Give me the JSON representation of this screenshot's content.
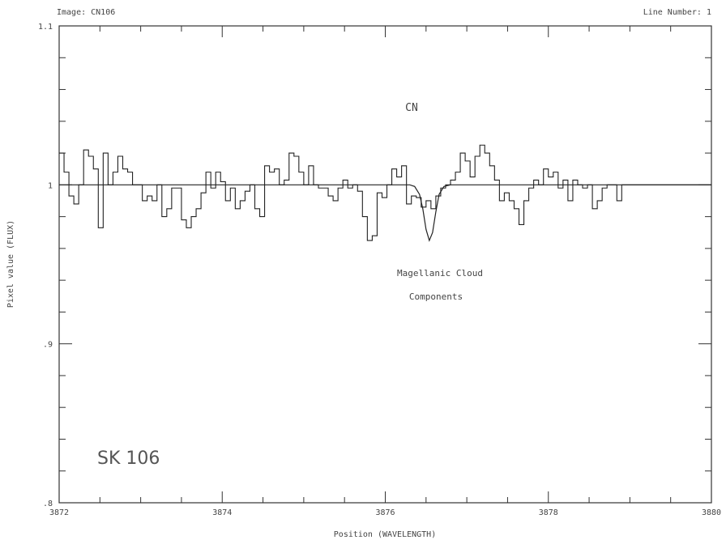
{
  "header": {
    "image_label": "Image: CN106",
    "line_number_label": "Line Number: 1"
  },
  "annotations": {
    "molecule": "CN",
    "component_line1": "Magellanic Cloud",
    "component_line2": "Components",
    "star_name": "SK 106"
  },
  "chart_data": {
    "type": "line",
    "title": "",
    "xlabel": "Position (WAVELENGTH)",
    "ylabel": "Pixel value (FLUX)",
    "xlim": [
      3872,
      3880
    ],
    "ylim": [
      0.8,
      1.1
    ],
    "grid": false,
    "x_ticks": [
      3872,
      3874,
      3876,
      3878,
      3880
    ],
    "x_tick_labels": [
      "3872",
      "3874",
      "3876",
      "3878",
      "3880"
    ],
    "y_ticks": [
      0.8,
      0.9,
      1.0,
      1.1
    ],
    "y_tick_labels": [
      ".8",
      ".9",
      "1",
      "1.1"
    ],
    "series": [
      {
        "style": "step",
        "x": [
          3872.0,
          3872.06,
          3872.12,
          3872.18,
          3872.24,
          3872.3,
          3872.36,
          3872.42,
          3872.48,
          3872.54,
          3872.6,
          3872.66,
          3872.72,
          3872.78,
          3872.84,
          3872.9,
          3872.96,
          3873.02,
          3873.08,
          3873.14,
          3873.2,
          3873.26,
          3873.32,
          3873.38,
          3873.44,
          3873.5,
          3873.56,
          3873.62,
          3873.68,
          3873.74,
          3873.8,
          3873.86,
          3873.92,
          3873.98,
          3874.04,
          3874.1,
          3874.16,
          3874.22,
          3874.28,
          3874.34,
          3874.4,
          3874.46,
          3874.52,
          3874.58,
          3874.64,
          3874.7,
          3874.76,
          3874.82,
          3874.88,
          3874.94,
          3875.0,
          3875.06,
          3875.12,
          3875.18,
          3875.24,
          3875.3,
          3875.36,
          3875.42,
          3875.48,
          3875.54,
          3875.6,
          3875.66,
          3875.72,
          3875.78,
          3875.84,
          3875.9,
          3875.96,
          3876.02,
          3876.08,
          3876.14,
          3876.2,
          3876.26,
          3876.32,
          3876.38,
          3876.44,
          3876.5,
          3876.56,
          3876.62,
          3876.68,
          3876.74,
          3876.8,
          3876.86,
          3876.92,
          3876.98,
          3877.04,
          3877.1,
          3877.16,
          3877.22,
          3877.28,
          3877.34,
          3877.4,
          3877.46,
          3877.52,
          3877.58,
          3877.64,
          3877.7,
          3877.76,
          3877.82,
          3877.88,
          3877.94,
          3878.0,
          3878.06,
          3878.12,
          3878.18,
          3878.24,
          3878.3,
          3878.36,
          3878.42,
          3878.48,
          3878.54,
          3878.6,
          3878.66,
          3878.72,
          3878.78,
          3878.84,
          3878.9,
          3878.96,
          3879.02,
          3879.08,
          3879.14,
          3879.2,
          3879.26,
          3879.32,
          3879.38,
          3879.44,
          3879.5,
          3879.56,
          3879.62,
          3879.68,
          3879.74,
          3879.8,
          3879.86,
          3879.92
        ],
        "values": [
          1.02,
          1.008,
          0.993,
          0.988,
          1.0,
          1.022,
          1.018,
          1.01,
          0.973,
          1.02,
          1.0,
          1.008,
          1.018,
          1.01,
          1.008,
          1.0,
          1.0,
          0.99,
          0.993,
          0.99,
          1.0,
          0.98,
          0.985,
          0.998,
          0.998,
          0.978,
          0.973,
          0.98,
          0.985,
          0.995,
          1.008,
          0.998,
          1.008,
          1.002,
          0.99,
          0.998,
          0.985,
          0.99,
          0.996,
          1.0,
          0.985,
          0.98,
          1.012,
          1.008,
          1.01,
          1.0,
          1.003,
          1.02,
          1.018,
          1.008,
          1.0,
          1.012,
          1.0,
          0.998,
          0.998,
          0.993,
          0.99,
          0.998,
          1.003,
          0.998,
          1.0,
          0.996,
          0.98,
          0.965,
          0.968,
          0.995,
          0.992,
          1.0,
          1.01,
          1.005,
          1.012,
          0.988,
          0.993,
          0.992,
          0.986,
          0.99,
          0.985,
          0.993,
          0.998,
          1.0,
          1.003,
          1.008,
          1.02,
          1.015,
          1.005,
          1.018,
          1.025,
          1.02,
          1.012,
          1.003,
          0.99,
          0.995,
          0.99,
          0.985,
          0.975,
          0.99,
          0.998,
          1.003,
          1.0,
          1.01,
          1.005,
          1.008,
          0.998,
          1.003,
          0.99,
          1.003,
          1.0,
          0.998,
          1.0,
          0.985,
          0.99,
          0.998,
          1.0,
          1.0,
          0.99,
          1.0,
          1.0,
          1.0,
          1.0,
          1.0,
          1.0,
          1.0,
          1.0,
          1.0,
          1.0,
          1.0,
          1.0,
          1.0,
          1.0,
          1.0,
          1.0,
          1.0,
          1.0
        ]
      },
      {
        "style": "line",
        "x": [
          3872.0,
          3876.3,
          3876.36,
          3876.42,
          3876.46,
          3876.5,
          3876.54,
          3876.58,
          3876.62,
          3876.66,
          3876.72,
          3876.8,
          3880.0
        ],
        "values": [
          1.0,
          1.0,
          0.999,
          0.994,
          0.985,
          0.972,
          0.965,
          0.97,
          0.983,
          0.994,
          0.999,
          1.0,
          1.0
        ]
      }
    ]
  }
}
